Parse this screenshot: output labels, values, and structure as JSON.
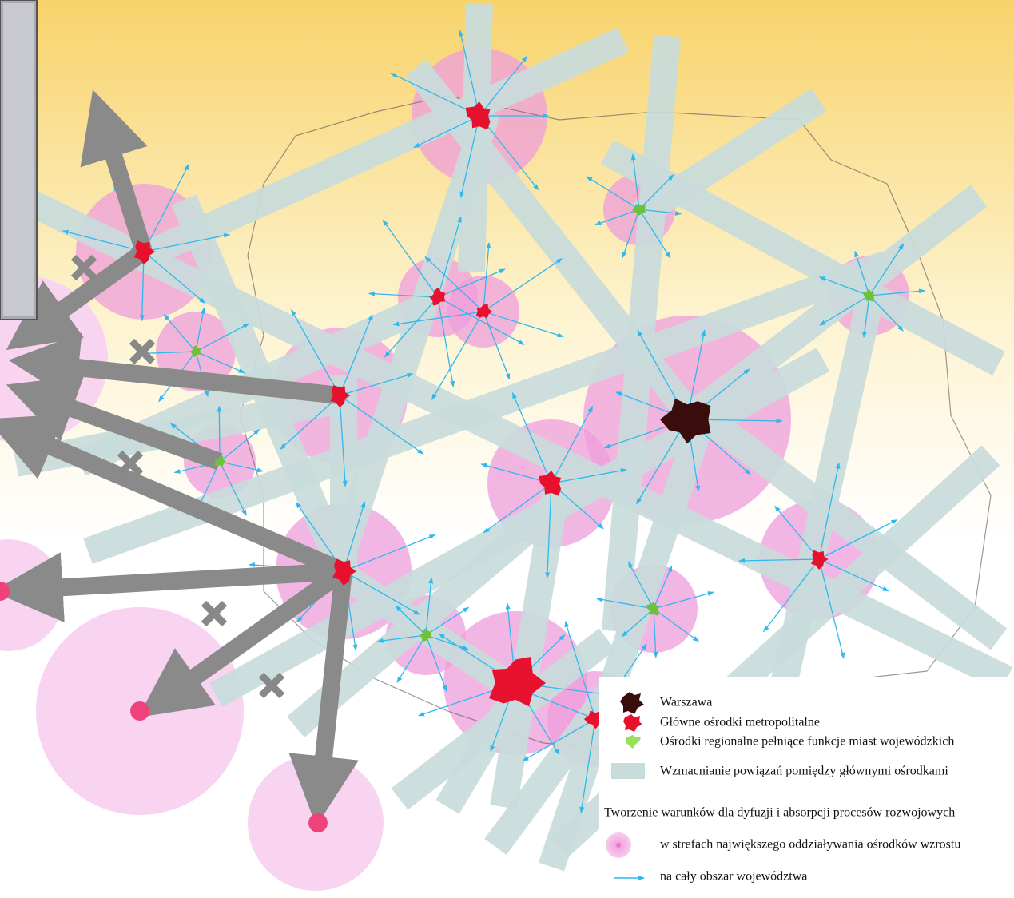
{
  "legend": {
    "items": [
      "Warszawa",
      "Główne ośrodki metropolitalne",
      "Ośrodki regionalne pełniące funkcje miast wojewódzkich",
      "Wzmacnianie powiązań pomiędzy głównymi ośrodkami"
    ],
    "subtitle": "Tworzenie warunków dla dyfuzji i absorpcji procesów rozwojowych",
    "subitems": [
      "w strefach największego oddziaływania ośrodków wzrostu",
      "na cały obszar województwa"
    ]
  }
}
